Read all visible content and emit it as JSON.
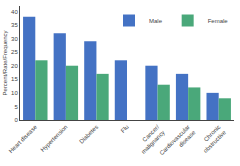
{
  "chart_data": {
    "type": "bar",
    "categories": [
      "Heart disease",
      "Hypertension",
      "Diabetes",
      "Flu",
      "Cancer/\nmalignancy",
      "Cardiovascular\ndisease",
      "Chronic\nobstructive"
    ],
    "series": [
      {
        "name": "Male",
        "color": "#4472c4",
        "values": [
          38,
          32,
          29,
          22,
          20,
          17,
          10
        ]
      },
      {
        "name": "Female",
        "color": "#4aa87a",
        "values": [
          22,
          20,
          17,
          0,
          13,
          12,
          8
        ]
      }
    ],
    "ylabel": "Percent/Rate/Frequency",
    "ylim": [
      0,
      42
    ],
    "yticks": [
      0,
      5,
      10,
      15,
      20,
      25,
      30,
      35,
      40
    ],
    "grid": false,
    "legend": "upper right"
  }
}
